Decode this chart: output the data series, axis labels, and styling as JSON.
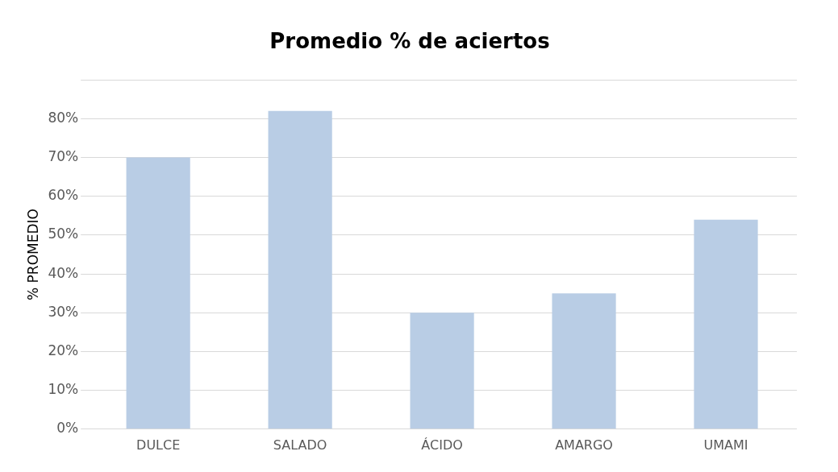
{
  "chart_data": {
    "type": "bar",
    "title": "Promedio % de aciertos",
    "ylabel": "% PROMEDIO",
    "categories": [
      "DULCE",
      "SALADO",
      "ÁCIDO",
      "AMARGO",
      "UMAMI"
    ],
    "values": [
      70,
      82,
      30,
      35,
      54
    ],
    "color": "#b9cde5",
    "ylim": [
      0,
      90
    ],
    "yticks": [
      {
        "value": 0,
        "label": "0%"
      },
      {
        "value": 10,
        "label": "10%"
      },
      {
        "value": 20,
        "label": "20%"
      },
      {
        "value": 30,
        "label": "30%"
      },
      {
        "value": 40,
        "label": "40%"
      },
      {
        "value": 50,
        "label": "50%"
      },
      {
        "value": 60,
        "label": "60%"
      },
      {
        "value": 70,
        "label": "70%"
      },
      {
        "value": 80,
        "label": "80%"
      },
      {
        "value": 90,
        "label": null
      }
    ],
    "grid": "y",
    "legend": false
  }
}
